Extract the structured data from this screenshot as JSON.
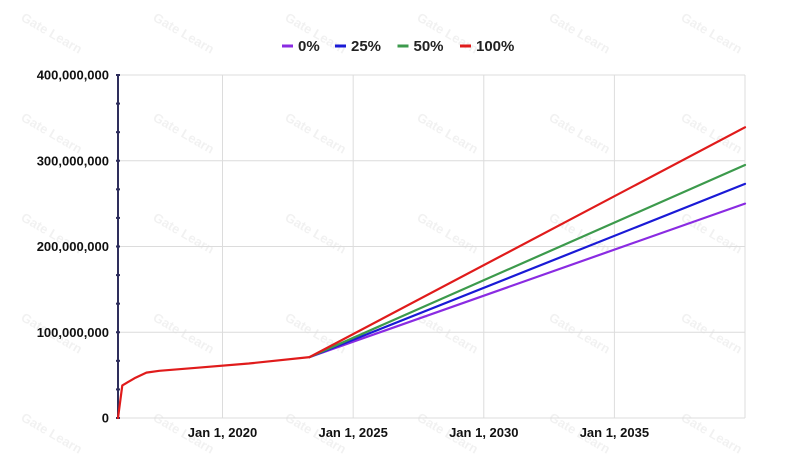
{
  "chart_data": {
    "type": "line",
    "title": "",
    "xlabel": "",
    "ylabel": "",
    "x_tick_labels": [
      {
        "date": "2020-01-01",
        "label": "Jan 1, 2020"
      },
      {
        "date": "2025-01-01",
        "label": "Jan 1, 2025"
      },
      {
        "date": "2030-01-01",
        "label": "Jan 1, 2030"
      },
      {
        "date": "2035-01-01",
        "label": "Jan 1, 2035"
      }
    ],
    "xlim": [
      "2016-01-01",
      "2040-01-01"
    ],
    "y_tick_labels": [
      {
        "value": 0,
        "label": "0"
      },
      {
        "value": 100000000,
        "label": "100,000,000"
      },
      {
        "value": 200000000,
        "label": "200,000,000"
      },
      {
        "value": 300000000,
        "label": "300,000,000"
      },
      {
        "value": 400000000,
        "label": "400,000,000"
      }
    ],
    "ylim": [
      0,
      400000000
    ],
    "grid": true,
    "legend_position": "top",
    "series": [
      {
        "name": "0%",
        "color": "#8a2be2",
        "points": [
          {
            "x": "2023-05-01",
            "y": 71000000
          },
          {
            "x": "2040-01-01",
            "y": 250000000
          }
        ]
      },
      {
        "name": "25%",
        "color": "#1a1ad6",
        "points": [
          {
            "x": "2023-05-01",
            "y": 71000000
          },
          {
            "x": "2040-01-01",
            "y": 273000000
          }
        ]
      },
      {
        "name": "50%",
        "color": "#3c9a4c",
        "points": [
          {
            "x": "2023-05-01",
            "y": 71000000
          },
          {
            "x": "2040-01-01",
            "y": 295000000
          }
        ]
      },
      {
        "name": "100%",
        "color": "#e01b1b",
        "points": [
          {
            "x": "2016-01-01",
            "y": 0
          },
          {
            "x": "2016-03-01",
            "y": 38000000
          },
          {
            "x": "2016-09-01",
            "y": 47000000
          },
          {
            "x": "2017-02-01",
            "y": 53000000
          },
          {
            "x": "2017-08-01",
            "y": 55000000
          },
          {
            "x": "2019-01-01",
            "y": 58500000
          },
          {
            "x": "2021-01-01",
            "y": 63500000
          },
          {
            "x": "2023-05-01",
            "y": 71000000
          },
          {
            "x": "2040-01-01",
            "y": 339000000
          }
        ]
      }
    ]
  },
  "watermark": "Gate Learn"
}
